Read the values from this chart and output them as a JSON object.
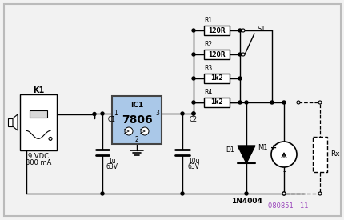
{
  "bg_color": "#f2f2f2",
  "border_color": "#999999",
  "line_color": "#000000",
  "ic_fill": "#aac8e8",
  "ic_border": "#555555",
  "watermark": "080851 - 11",
  "watermark_color": "#9944bb",
  "components": {
    "K1_label": "K1",
    "IC1_label": "IC1",
    "IC1_text": "7806",
    "C1_label": "C1",
    "C1_val1": "1u",
    "C1_val2": "63V",
    "C2_label": "C2",
    "C2_val1": "10u",
    "C2_val2": "63V",
    "R1_label": "R1",
    "R1_val": "120R",
    "R2_label": "R2",
    "R2_val": "120R",
    "R3_label": "R3",
    "R3_val": "1k2",
    "R4_label": "R4",
    "R4_val": "1k2",
    "D1_label": "D1",
    "D1_val": "1N4004",
    "M1_label": "M1",
    "S1_label": "S1",
    "Rx_label": "Rx",
    "pwr1": "9 VDC",
    "pwr2": "300 mA",
    "pin1": "1",
    "pin2": "2",
    "pin3": "3",
    "plus": "+",
    "minus": "-"
  }
}
